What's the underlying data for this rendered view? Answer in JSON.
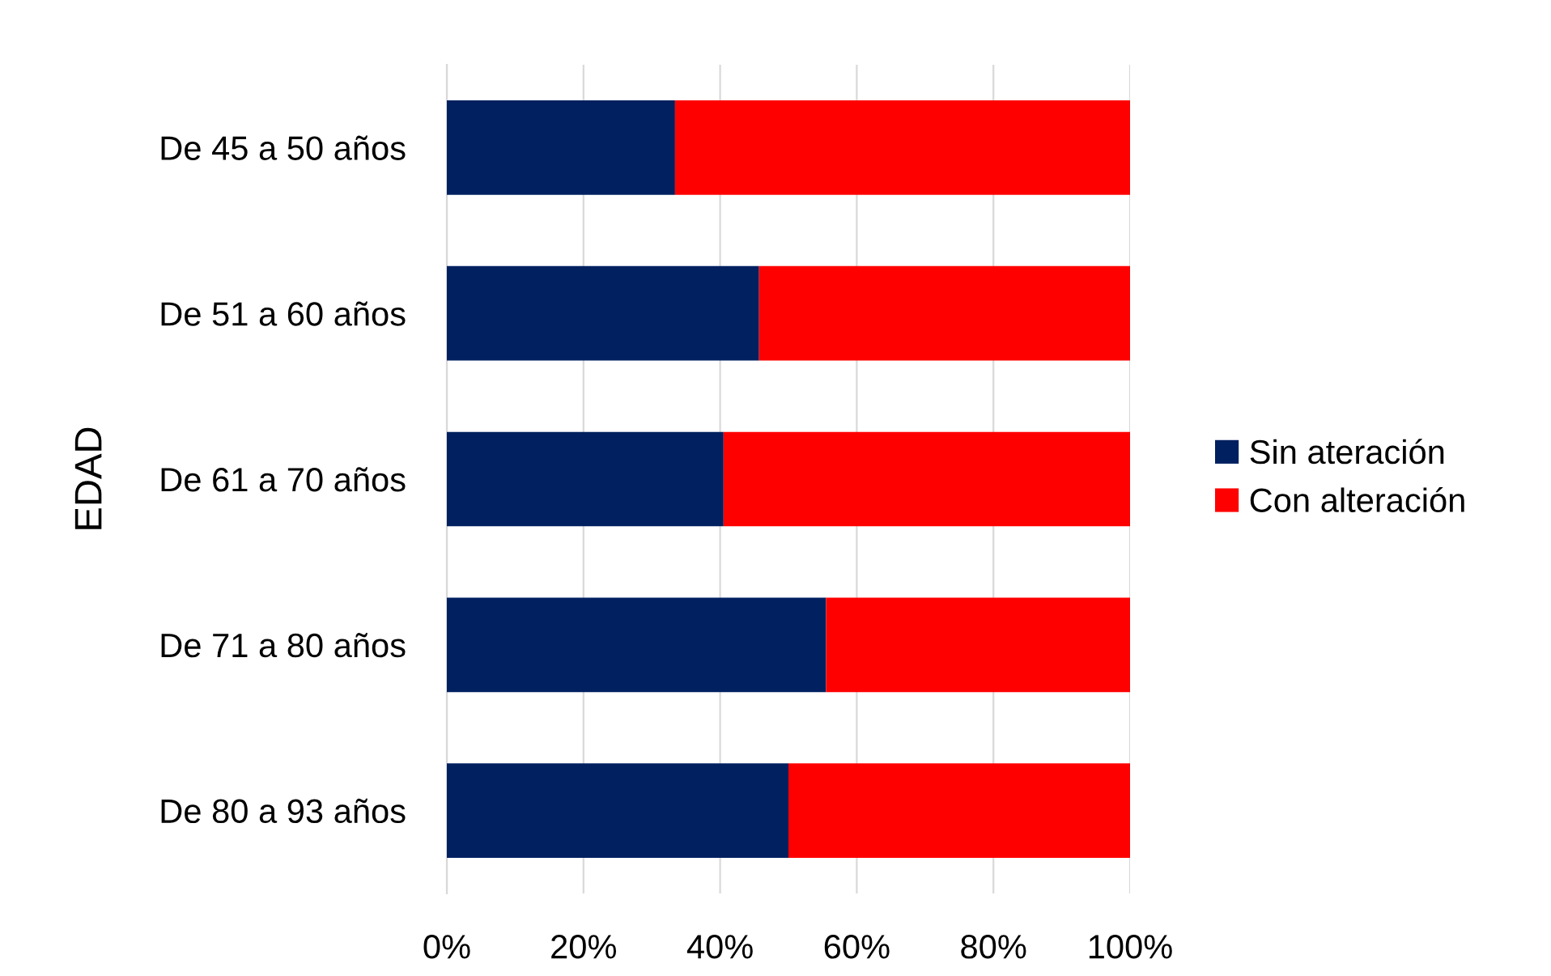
{
  "chart_data": {
    "type": "bar",
    "orientation": "horizontal",
    "stacked": true,
    "ylabel": "EDAD",
    "categories": [
      "De 45 a 50 años",
      "De 51 a 60 años",
      "De 61 a 70 años",
      "De 71 a 80 años",
      "De 80 a 93 años"
    ],
    "series": [
      {
        "name": "Sin ateración",
        "color": "#002060",
        "values": [
          33.4,
          45.7,
          40.5,
          55.5,
          50
        ]
      },
      {
        "name": "Con alteración",
        "color": "#ff0000",
        "values": [
          66.6,
          54.3,
          59.5,
          44.5,
          50
        ]
      }
    ],
    "xlim": [
      0,
      100
    ],
    "xticks": [
      {
        "value": 0,
        "label": "0%"
      },
      {
        "value": 20,
        "label": "20%"
      },
      {
        "value": 40,
        "label": "40%"
      },
      {
        "value": 60,
        "label": "60%"
      },
      {
        "value": 80,
        "label": "80%"
      },
      {
        "value": 100,
        "label": "100%"
      }
    ],
    "grid": "x",
    "legend": "right"
  }
}
